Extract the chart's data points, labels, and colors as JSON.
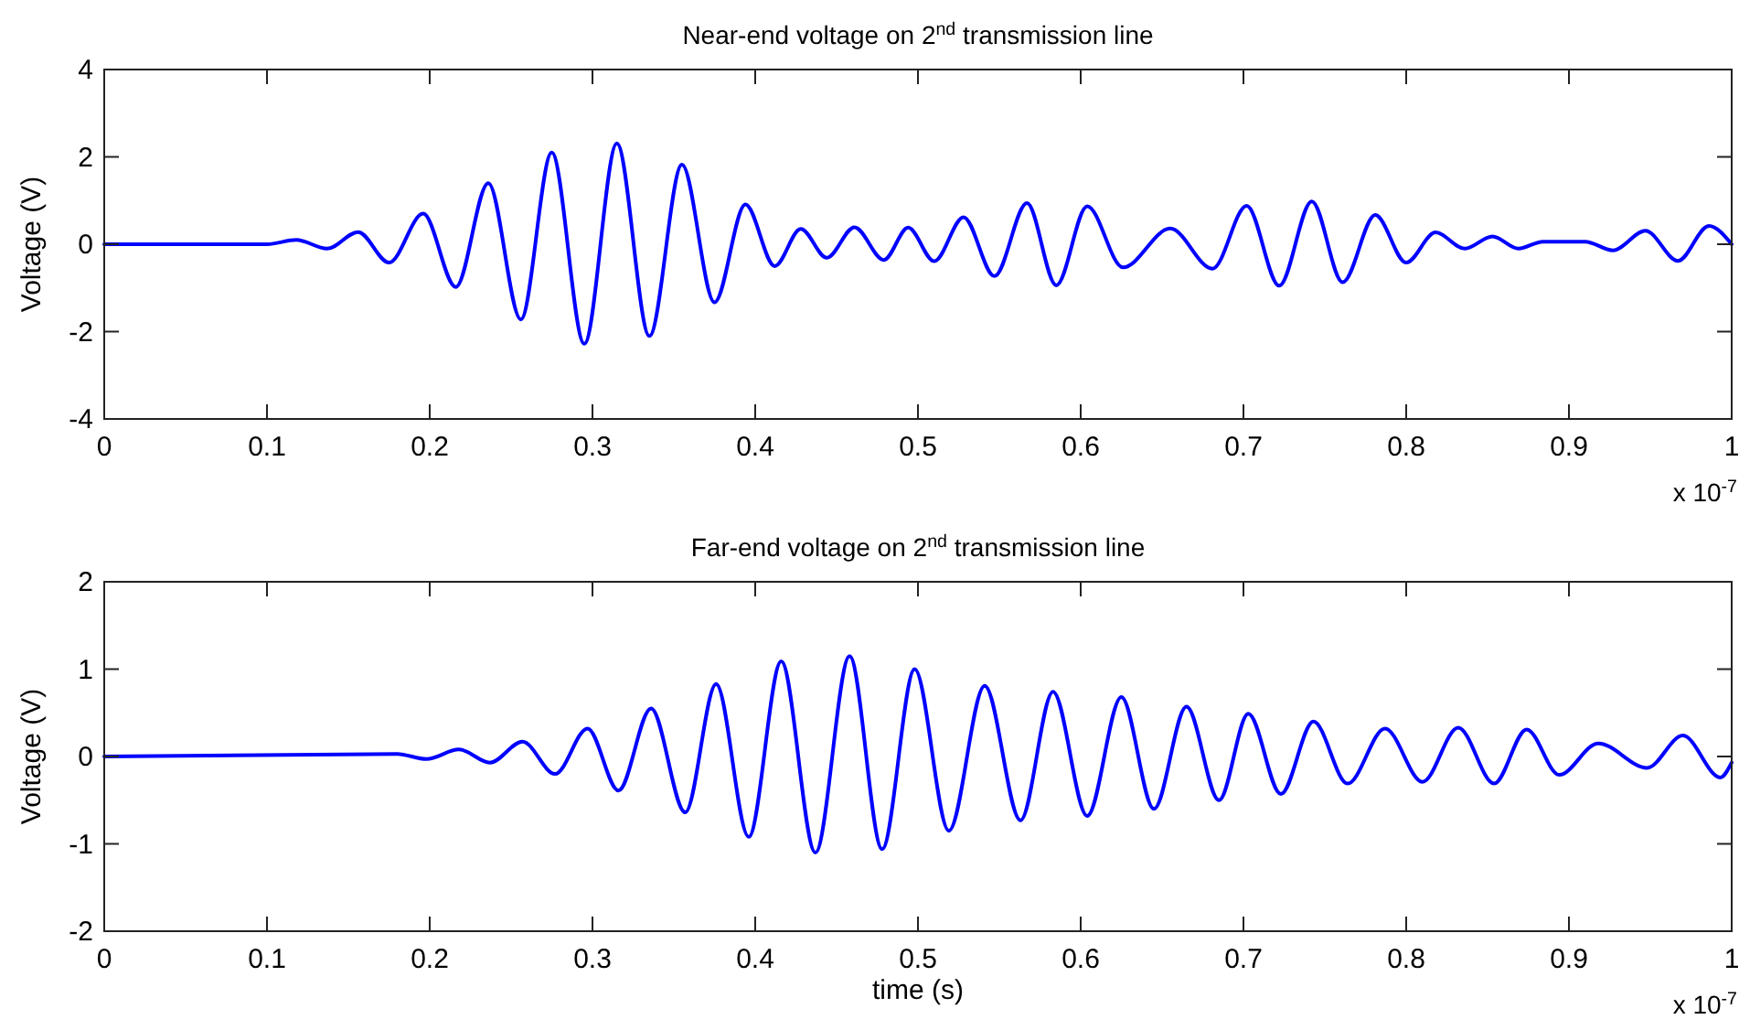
{
  "chart_data": [
    {
      "type": "line",
      "title": "Near-end voltage on 2$^{nd}$ transmission line",
      "ylabel": "Voltage (V)",
      "annotations": [
        "x 10$^{-7}$"
      ],
      "xlim": [
        0,
        1
      ],
      "xticks": [
        0,
        0.1,
        0.2,
        0.3,
        0.4,
        0.5,
        0.6,
        0.7,
        0.8,
        0.9,
        1
      ],
      "ylim": [
        -4,
        4
      ],
      "yticks": [
        -4,
        -2,
        0,
        2,
        4
      ],
      "marker": "none",
      "line_style": "solid",
      "series": [
        {
          "color": "#0000ff",
          "x": [
            0,
            0.1,
            0.118,
            0.137,
            0.156,
            0.175,
            0.196,
            0.216,
            0.236,
            0.256,
            0.275,
            0.295,
            0.315,
            0.335,
            0.355,
            0.375,
            0.394,
            0.412,
            0.428,
            0.444,
            0.461,
            0.479,
            0.494,
            0.51,
            0.528,
            0.547,
            0.567,
            0.585,
            0.604,
            0.626,
            0.655,
            0.681,
            0.702,
            0.722,
            0.742,
            0.761,
            0.781,
            0.8,
            0.818,
            0.836,
            0.853,
            0.869,
            0.884,
            0.91,
            0.927,
            0.947,
            0.967,
            0.986,
            1
          ],
          "values": [
            0,
            0,
            0.1,
            -0.1,
            0.28,
            -0.42,
            0.7,
            -0.98,
            1.4,
            -1.72,
            2.1,
            -2.28,
            2.31,
            -2.1,
            1.82,
            -1.33,
            0.91,
            -0.5,
            0.35,
            -0.31,
            0.39,
            -0.36,
            0.38,
            -0.39,
            0.62,
            -0.73,
            0.94,
            -0.94,
            0.87,
            -0.53,
            0.36,
            -0.56,
            0.88,
            -0.95,
            0.98,
            -0.87,
            0.67,
            -0.42,
            0.27,
            -0.1,
            0.18,
            -0.1,
            0.06,
            0.06,
            -0.14,
            0.31,
            -0.38,
            0.42,
            0
          ]
        }
      ]
    },
    {
      "type": "line",
      "title": "Far-end voltage on 2$^{nd}$ transmission line",
      "xlabel": "time (s)",
      "ylabel": "Voltage (V)",
      "annotations": [
        "x 10$^{-7}$"
      ],
      "xlim": [
        0,
        1
      ],
      "xticks": [
        0,
        0.1,
        0.2,
        0.3,
        0.4,
        0.5,
        0.6,
        0.7,
        0.8,
        0.9,
        1
      ],
      "ylim": [
        -2,
        2
      ],
      "yticks": [
        -2,
        -1,
        0,
        1,
        2
      ],
      "marker": "none",
      "line_style": "solid",
      "series": [
        {
          "color": "#0000ff",
          "x": [
            0,
            0.18,
            0.198,
            0.218,
            0.237,
            0.257,
            0.277,
            0.297,
            0.316,
            0.336,
            0.357,
            0.376,
            0.396,
            0.416,
            0.437,
            0.458,
            0.478,
            0.498,
            0.519,
            0.541,
            0.563,
            0.583,
            0.604,
            0.625,
            0.645,
            0.665,
            0.685,
            0.703,
            0.723,
            0.743,
            0.764,
            0.787,
            0.81,
            0.832,
            0.854,
            0.874,
            0.894,
            0.918,
            0.948,
            0.97,
            0.993,
            1
          ],
          "values": [
            0,
            0.03,
            -0.03,
            0.08,
            -0.07,
            0.17,
            -0.2,
            0.32,
            -0.39,
            0.55,
            -0.64,
            0.83,
            -0.92,
            1.09,
            -1.1,
            1.15,
            -1.06,
            1.0,
            -0.85,
            0.81,
            -0.73,
            0.74,
            -0.68,
            0.68,
            -0.6,
            0.57,
            -0.5,
            0.49,
            -0.43,
            0.4,
            -0.31,
            0.32,
            -0.29,
            0.33,
            -0.31,
            0.31,
            -0.21,
            0.15,
            -0.13,
            0.24,
            -0.24,
            -0.07
          ]
        }
      ]
    }
  ]
}
